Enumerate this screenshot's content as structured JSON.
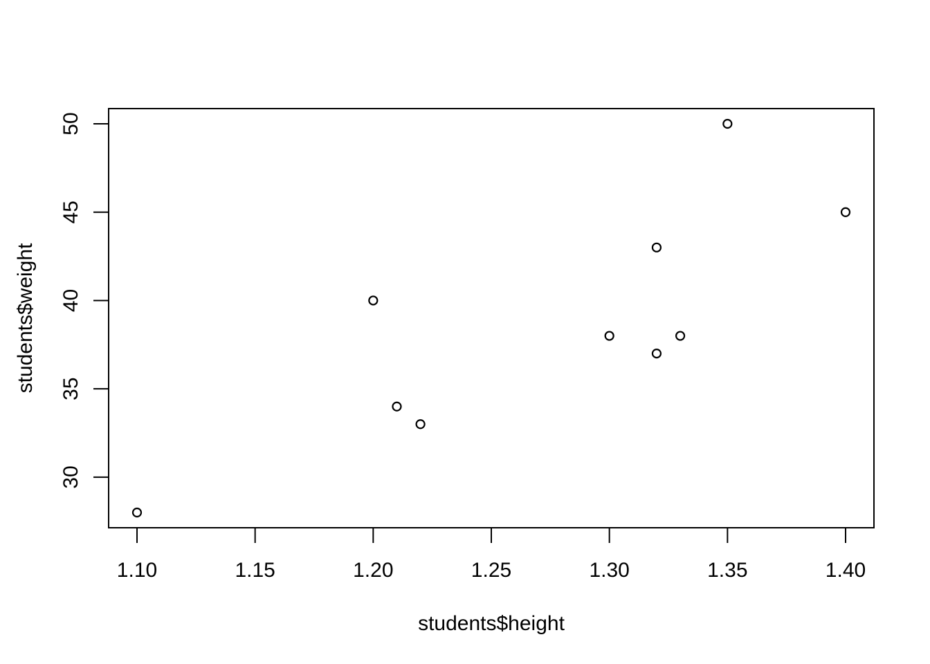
{
  "chart_data": {
    "type": "scatter",
    "title": "",
    "xlabel": "students$height",
    "ylabel": "students$weight",
    "xlim": [
      1.1,
      1.4
    ],
    "ylim": [
      28,
      50
    ],
    "x_ticks": [
      "1.10",
      "1.15",
      "1.20",
      "1.25",
      "1.30",
      "1.35",
      "1.40"
    ],
    "y_ticks": [
      "30",
      "35",
      "40",
      "45",
      "50"
    ],
    "grid": false,
    "legend": "none",
    "points": [
      {
        "x": 1.1,
        "y": 28
      },
      {
        "x": 1.2,
        "y": 40
      },
      {
        "x": 1.21,
        "y": 34
      },
      {
        "x": 1.22,
        "y": 33
      },
      {
        "x": 1.3,
        "y": 38
      },
      {
        "x": 1.32,
        "y": 43
      },
      {
        "x": 1.32,
        "y": 37
      },
      {
        "x": 1.33,
        "y": 38
      },
      {
        "x": 1.35,
        "y": 50
      },
      {
        "x": 1.4,
        "y": 45
      }
    ],
    "point_style": "open-circle",
    "colors": {
      "foreground": "#000000",
      "background": "#ffffff"
    }
  }
}
